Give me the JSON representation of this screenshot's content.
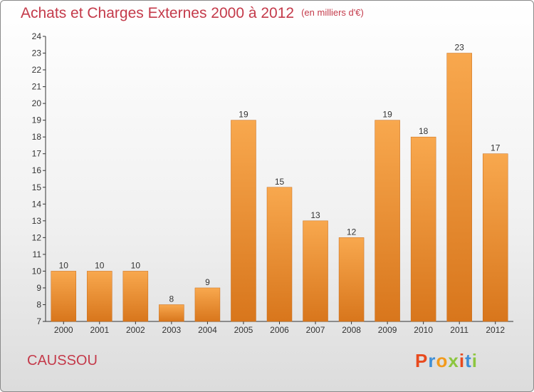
{
  "title": "Achats et Charges Externes 2000 à 2012",
  "unit": "(en milliers d'€)",
  "commune": "CAUSSOU",
  "logo": "Proxiti",
  "colors": {
    "bar_light": "#f8a84e",
    "bar_dark": "#d8761c",
    "title": "#c43a4a",
    "logo_letters": [
      "#e84a1e",
      "#3f8fd6",
      "#f29a1c",
      "#8cc63f",
      "#e84a1e",
      "#3f8fd6",
      "#8cc63f"
    ]
  },
  "chart_data": {
    "type": "bar",
    "title": "Achats et Charges Externes 2000 à 2012",
    "categories": [
      "2000",
      "2001",
      "2002",
      "2003",
      "2004",
      "2005",
      "2006",
      "2007",
      "2008",
      "2009",
      "2010",
      "2011",
      "2012"
    ],
    "values": [
      10,
      10,
      10,
      8,
      9,
      19,
      15,
      13,
      12,
      19,
      18,
      23,
      17
    ],
    "ylim": [
      7,
      24
    ],
    "yticks": [
      7,
      8,
      9,
      10,
      11,
      12,
      13,
      14,
      15,
      16,
      17,
      18,
      19,
      20,
      21,
      22,
      23,
      24
    ],
    "grid": false,
    "data_labels": true
  }
}
